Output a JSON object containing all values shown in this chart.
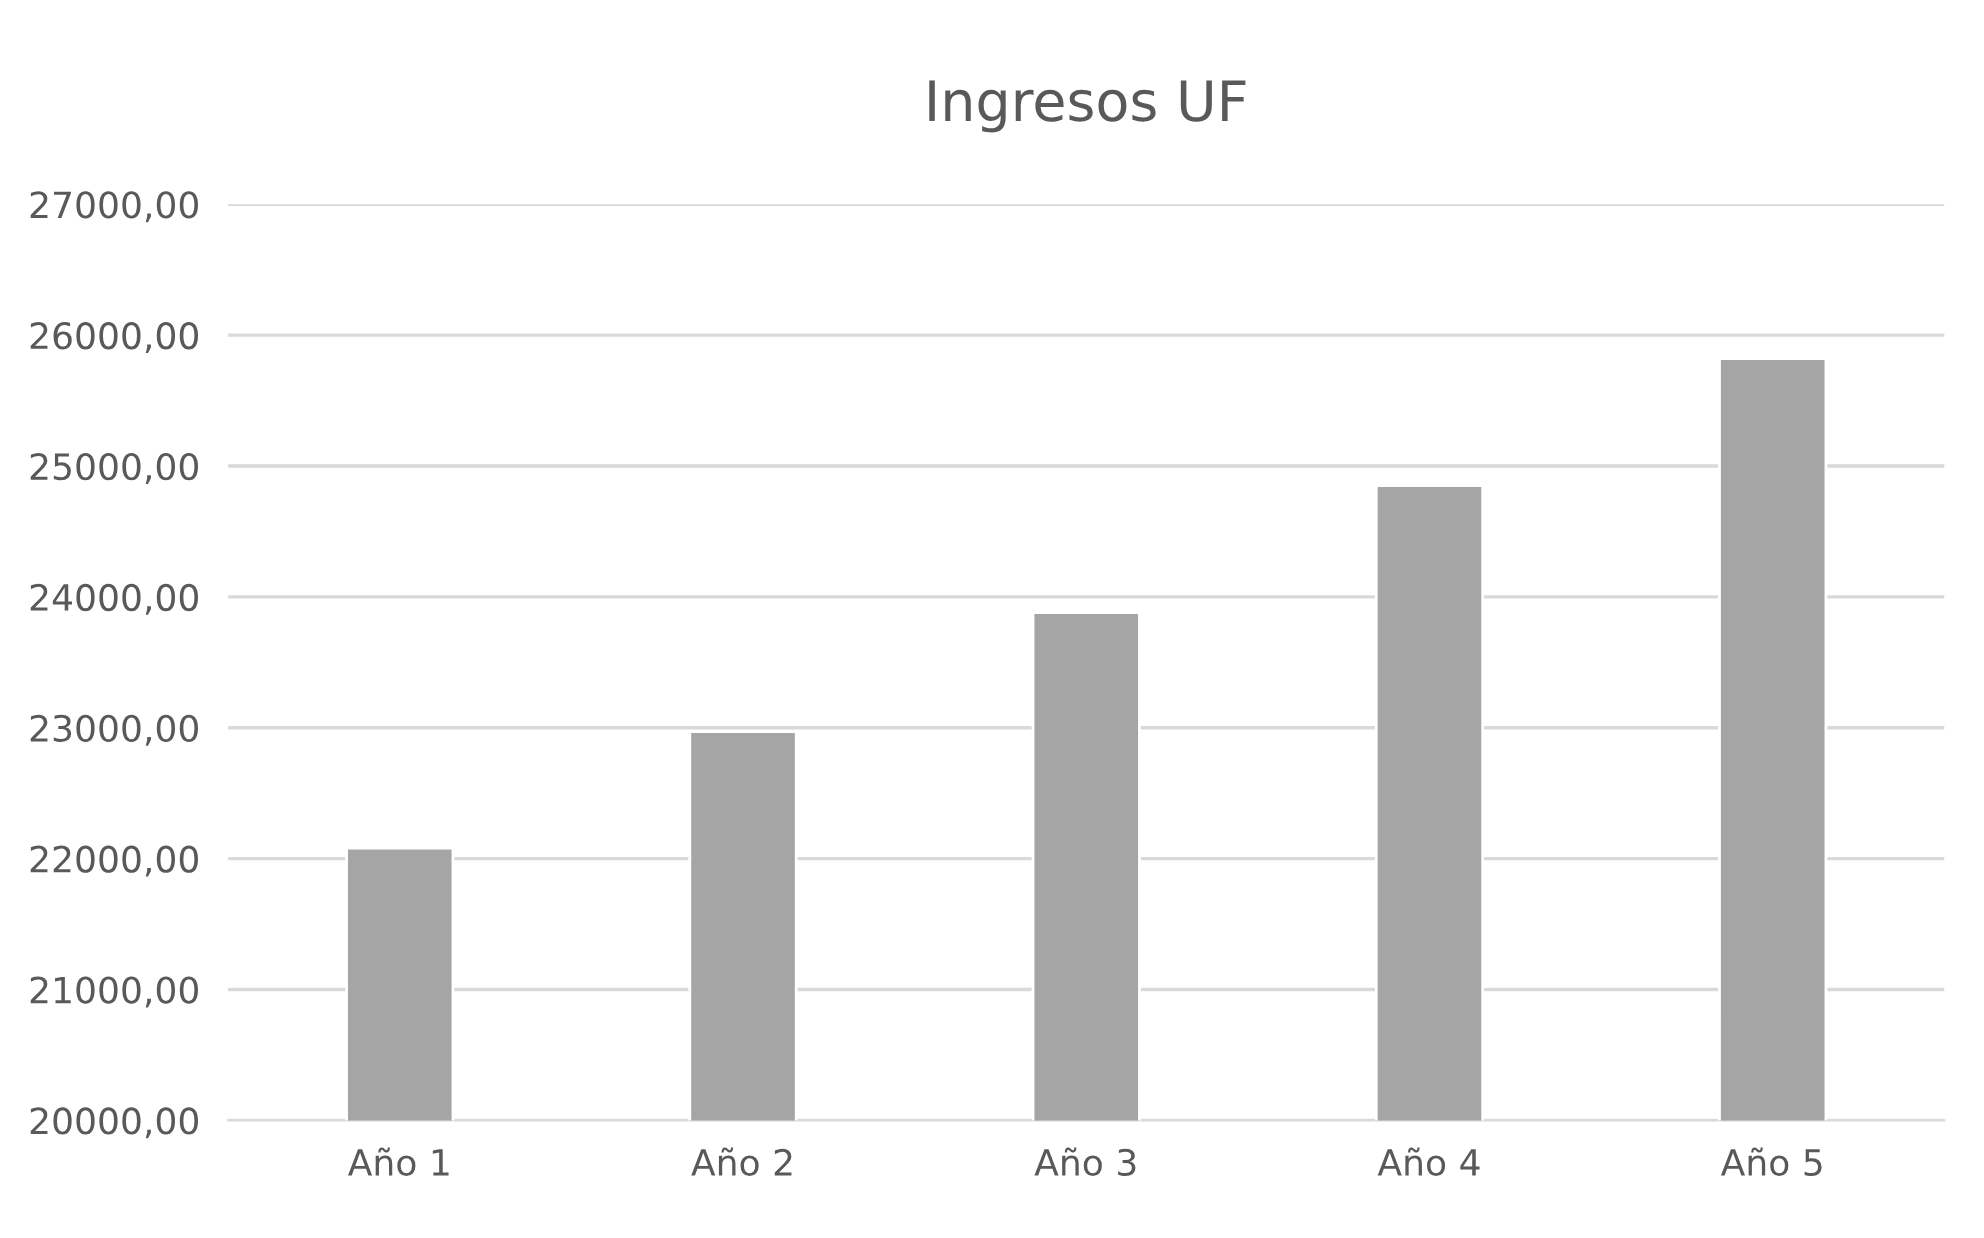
{
  "chart_data": {
    "type": "bar",
    "title": "Ingresos UF",
    "categories": [
      "Año 1",
      "Año 2",
      "Año 3",
      "Año 4",
      "Año 5"
    ],
    "values": [
      22080,
      22970,
      23880,
      24850,
      25820
    ],
    "color": "#a5a5a5",
    "ylim": [
      20000,
      27000
    ],
    "yticks": [
      {
        "value": 20000,
        "label": "20000,00"
      },
      {
        "value": 21000,
        "label": "21000,00"
      },
      {
        "value": 22000,
        "label": "22000,00"
      },
      {
        "value": 23000,
        "label": "23000,00"
      },
      {
        "value": 24000,
        "label": "24000,00"
      },
      {
        "value": 25000,
        "label": "25000,00"
      },
      {
        "value": 26000,
        "label": "26000,00"
      },
      {
        "value": 27000,
        "label": "27000,00"
      }
    ],
    "grid": "y",
    "legend": false
  }
}
